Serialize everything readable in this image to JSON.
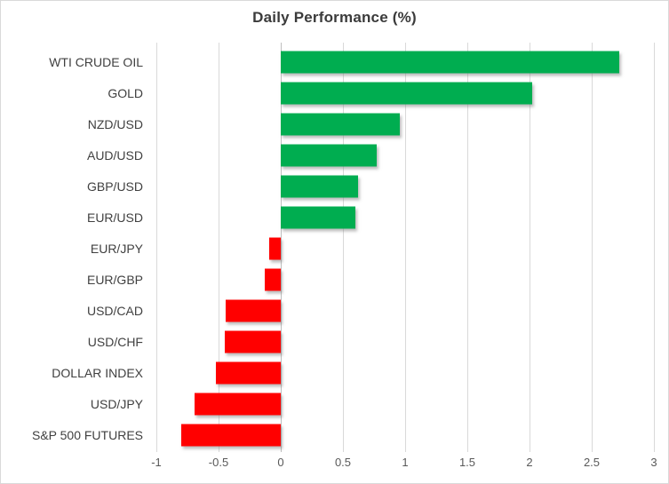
{
  "chart_data": {
    "type": "bar",
    "orientation": "horizontal",
    "title": "Daily Performance (%)",
    "categories": [
      "WTI CRUDE OIL",
      "GOLD",
      "NZD/USD",
      "AUD/USD",
      "GBP/USD",
      "EUR/USD",
      "EUR/JPY",
      "EUR/GBP",
      "USD/CAD",
      "USD/CHF",
      "DOLLAR INDEX",
      "USD/JPY",
      "S&P 500 FUTURES"
    ],
    "values": [
      2.72,
      2.02,
      0.96,
      0.77,
      0.62,
      0.6,
      -0.09,
      -0.13,
      -0.44,
      -0.45,
      -0.52,
      -0.69,
      -0.8
    ],
    "xlim": [
      -1,
      3
    ],
    "xticks": [
      {
        "value": -1,
        "label": "-1"
      },
      {
        "value": -0.5,
        "label": "-0.5"
      },
      {
        "value": 0,
        "label": "0"
      },
      {
        "value": 0.5,
        "label": "0.5"
      },
      {
        "value": 1,
        "label": "1"
      },
      {
        "value": 1.5,
        "label": "1.5"
      },
      {
        "value": 2,
        "label": "2"
      },
      {
        "value": 2.5,
        "label": "2.5"
      },
      {
        "value": 3,
        "label": "3"
      }
    ],
    "positive_color": "#00AD50",
    "negative_color": "#FF0000",
    "gridline_color": "#D9D9D9",
    "zero_line_color": "#BFBFBF",
    "grid": true,
    "legend": false,
    "xlabel": "",
    "ylabel": ""
  }
}
